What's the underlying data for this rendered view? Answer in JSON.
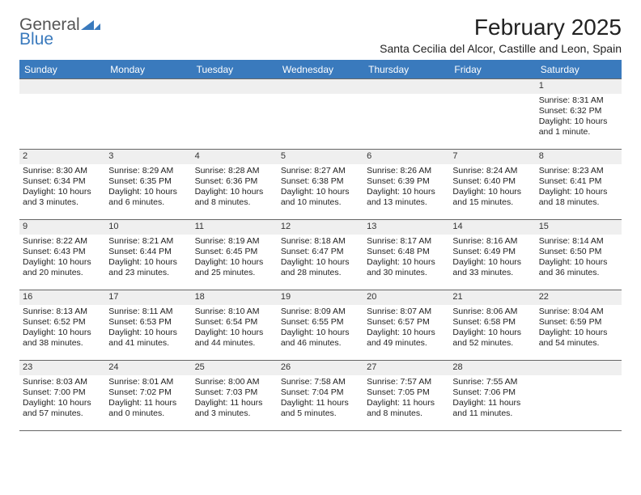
{
  "logo": {
    "line1": "General",
    "line2": "Blue"
  },
  "title": "February 2025",
  "location": "Santa Cecilia del Alcor, Castille and Leon, Spain",
  "day_headers": [
    "Sunday",
    "Monday",
    "Tuesday",
    "Wednesday",
    "Thursday",
    "Friday",
    "Saturday"
  ],
  "colors": {
    "header_bg": "#3a7abd",
    "header_text": "#ffffff",
    "daynum_bg": "#efefef",
    "rule": "#666666",
    "logo_blue": "#3a7abd",
    "logo_grey": "#555555"
  },
  "weeks": [
    [
      {
        "n": "",
        "text": ""
      },
      {
        "n": "",
        "text": ""
      },
      {
        "n": "",
        "text": ""
      },
      {
        "n": "",
        "text": ""
      },
      {
        "n": "",
        "text": ""
      },
      {
        "n": "",
        "text": ""
      },
      {
        "n": "1",
        "text": "Sunrise: 8:31 AM\nSunset: 6:32 PM\nDaylight: 10 hours and 1 minute."
      }
    ],
    [
      {
        "n": "2",
        "text": "Sunrise: 8:30 AM\nSunset: 6:34 PM\nDaylight: 10 hours and 3 minutes."
      },
      {
        "n": "3",
        "text": "Sunrise: 8:29 AM\nSunset: 6:35 PM\nDaylight: 10 hours and 6 minutes."
      },
      {
        "n": "4",
        "text": "Sunrise: 8:28 AM\nSunset: 6:36 PM\nDaylight: 10 hours and 8 minutes."
      },
      {
        "n": "5",
        "text": "Sunrise: 8:27 AM\nSunset: 6:38 PM\nDaylight: 10 hours and 10 minutes."
      },
      {
        "n": "6",
        "text": "Sunrise: 8:26 AM\nSunset: 6:39 PM\nDaylight: 10 hours and 13 minutes."
      },
      {
        "n": "7",
        "text": "Sunrise: 8:24 AM\nSunset: 6:40 PM\nDaylight: 10 hours and 15 minutes."
      },
      {
        "n": "8",
        "text": "Sunrise: 8:23 AM\nSunset: 6:41 PM\nDaylight: 10 hours and 18 minutes."
      }
    ],
    [
      {
        "n": "9",
        "text": "Sunrise: 8:22 AM\nSunset: 6:43 PM\nDaylight: 10 hours and 20 minutes."
      },
      {
        "n": "10",
        "text": "Sunrise: 8:21 AM\nSunset: 6:44 PM\nDaylight: 10 hours and 23 minutes."
      },
      {
        "n": "11",
        "text": "Sunrise: 8:19 AM\nSunset: 6:45 PM\nDaylight: 10 hours and 25 minutes."
      },
      {
        "n": "12",
        "text": "Sunrise: 8:18 AM\nSunset: 6:47 PM\nDaylight: 10 hours and 28 minutes."
      },
      {
        "n": "13",
        "text": "Sunrise: 8:17 AM\nSunset: 6:48 PM\nDaylight: 10 hours and 30 minutes."
      },
      {
        "n": "14",
        "text": "Sunrise: 8:16 AM\nSunset: 6:49 PM\nDaylight: 10 hours and 33 minutes."
      },
      {
        "n": "15",
        "text": "Sunrise: 8:14 AM\nSunset: 6:50 PM\nDaylight: 10 hours and 36 minutes."
      }
    ],
    [
      {
        "n": "16",
        "text": "Sunrise: 8:13 AM\nSunset: 6:52 PM\nDaylight: 10 hours and 38 minutes."
      },
      {
        "n": "17",
        "text": "Sunrise: 8:11 AM\nSunset: 6:53 PM\nDaylight: 10 hours and 41 minutes."
      },
      {
        "n": "18",
        "text": "Sunrise: 8:10 AM\nSunset: 6:54 PM\nDaylight: 10 hours and 44 minutes."
      },
      {
        "n": "19",
        "text": "Sunrise: 8:09 AM\nSunset: 6:55 PM\nDaylight: 10 hours and 46 minutes."
      },
      {
        "n": "20",
        "text": "Sunrise: 8:07 AM\nSunset: 6:57 PM\nDaylight: 10 hours and 49 minutes."
      },
      {
        "n": "21",
        "text": "Sunrise: 8:06 AM\nSunset: 6:58 PM\nDaylight: 10 hours and 52 minutes."
      },
      {
        "n": "22",
        "text": "Sunrise: 8:04 AM\nSunset: 6:59 PM\nDaylight: 10 hours and 54 minutes."
      }
    ],
    [
      {
        "n": "23",
        "text": "Sunrise: 8:03 AM\nSunset: 7:00 PM\nDaylight: 10 hours and 57 minutes."
      },
      {
        "n": "24",
        "text": "Sunrise: 8:01 AM\nSunset: 7:02 PM\nDaylight: 11 hours and 0 minutes."
      },
      {
        "n": "25",
        "text": "Sunrise: 8:00 AM\nSunset: 7:03 PM\nDaylight: 11 hours and 3 minutes."
      },
      {
        "n": "26",
        "text": "Sunrise: 7:58 AM\nSunset: 7:04 PM\nDaylight: 11 hours and 5 minutes."
      },
      {
        "n": "27",
        "text": "Sunrise: 7:57 AM\nSunset: 7:05 PM\nDaylight: 11 hours and 8 minutes."
      },
      {
        "n": "28",
        "text": "Sunrise: 7:55 AM\nSunset: 7:06 PM\nDaylight: 11 hours and 11 minutes."
      },
      {
        "n": "",
        "text": ""
      }
    ]
  ]
}
